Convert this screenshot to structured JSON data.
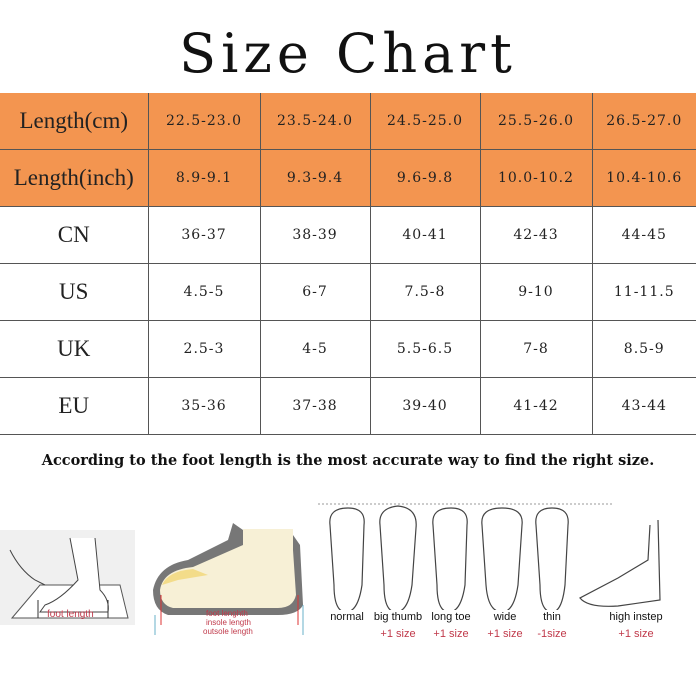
{
  "title": "Size Chart",
  "table": {
    "rows": [
      {
        "label": "Length(cm)",
        "values": [
          "22.5-23.0",
          "23.5-24.0",
          "24.5-25.0",
          "25.5-26.0",
          "26.5-27.0"
        ]
      },
      {
        "label": "Length(inch)",
        "values": [
          "8.9-9.1",
          "9.3-9.4",
          "9.6-9.8",
          "10.0-10.2",
          "10.4-10.6"
        ]
      },
      {
        "label": "CN",
        "values": [
          "36-37",
          "38-39",
          "40-41",
          "42-43",
          "44-45"
        ]
      },
      {
        "label": "US",
        "values": [
          "4.5-5",
          "6-7",
          "7.5-8",
          "9-10",
          "11-11.5"
        ]
      },
      {
        "label": "UK",
        "values": [
          "2.5-3",
          "4-5",
          "5.5-6.5",
          "7-8",
          "8.5-9"
        ]
      },
      {
        "label": "EU",
        "values": [
          "35-36",
          "37-38",
          "39-40",
          "41-42",
          "43-44"
        ]
      }
    ]
  },
  "note": "According to the foot length is the most  accurate way to find the right size.",
  "diagrams": {
    "foot_length": "foot length",
    "shoe": {
      "foot": "foot lenghth",
      "insole": "insole length",
      "outsole": "outsole length"
    },
    "foot_types": [
      {
        "name": "normal",
        "adjust": ""
      },
      {
        "name": "big thumb",
        "adjust": "+1 size"
      },
      {
        "name": "long toe",
        "adjust": "+1 size"
      },
      {
        "name": "wide",
        "adjust": "+1 size"
      },
      {
        "name": "thin",
        "adjust": "-1size"
      },
      {
        "name": "high instep",
        "adjust": "+1 size"
      }
    ]
  },
  "colors": {
    "header_orange": "#f39550",
    "adjust_red": "#c0394a"
  }
}
